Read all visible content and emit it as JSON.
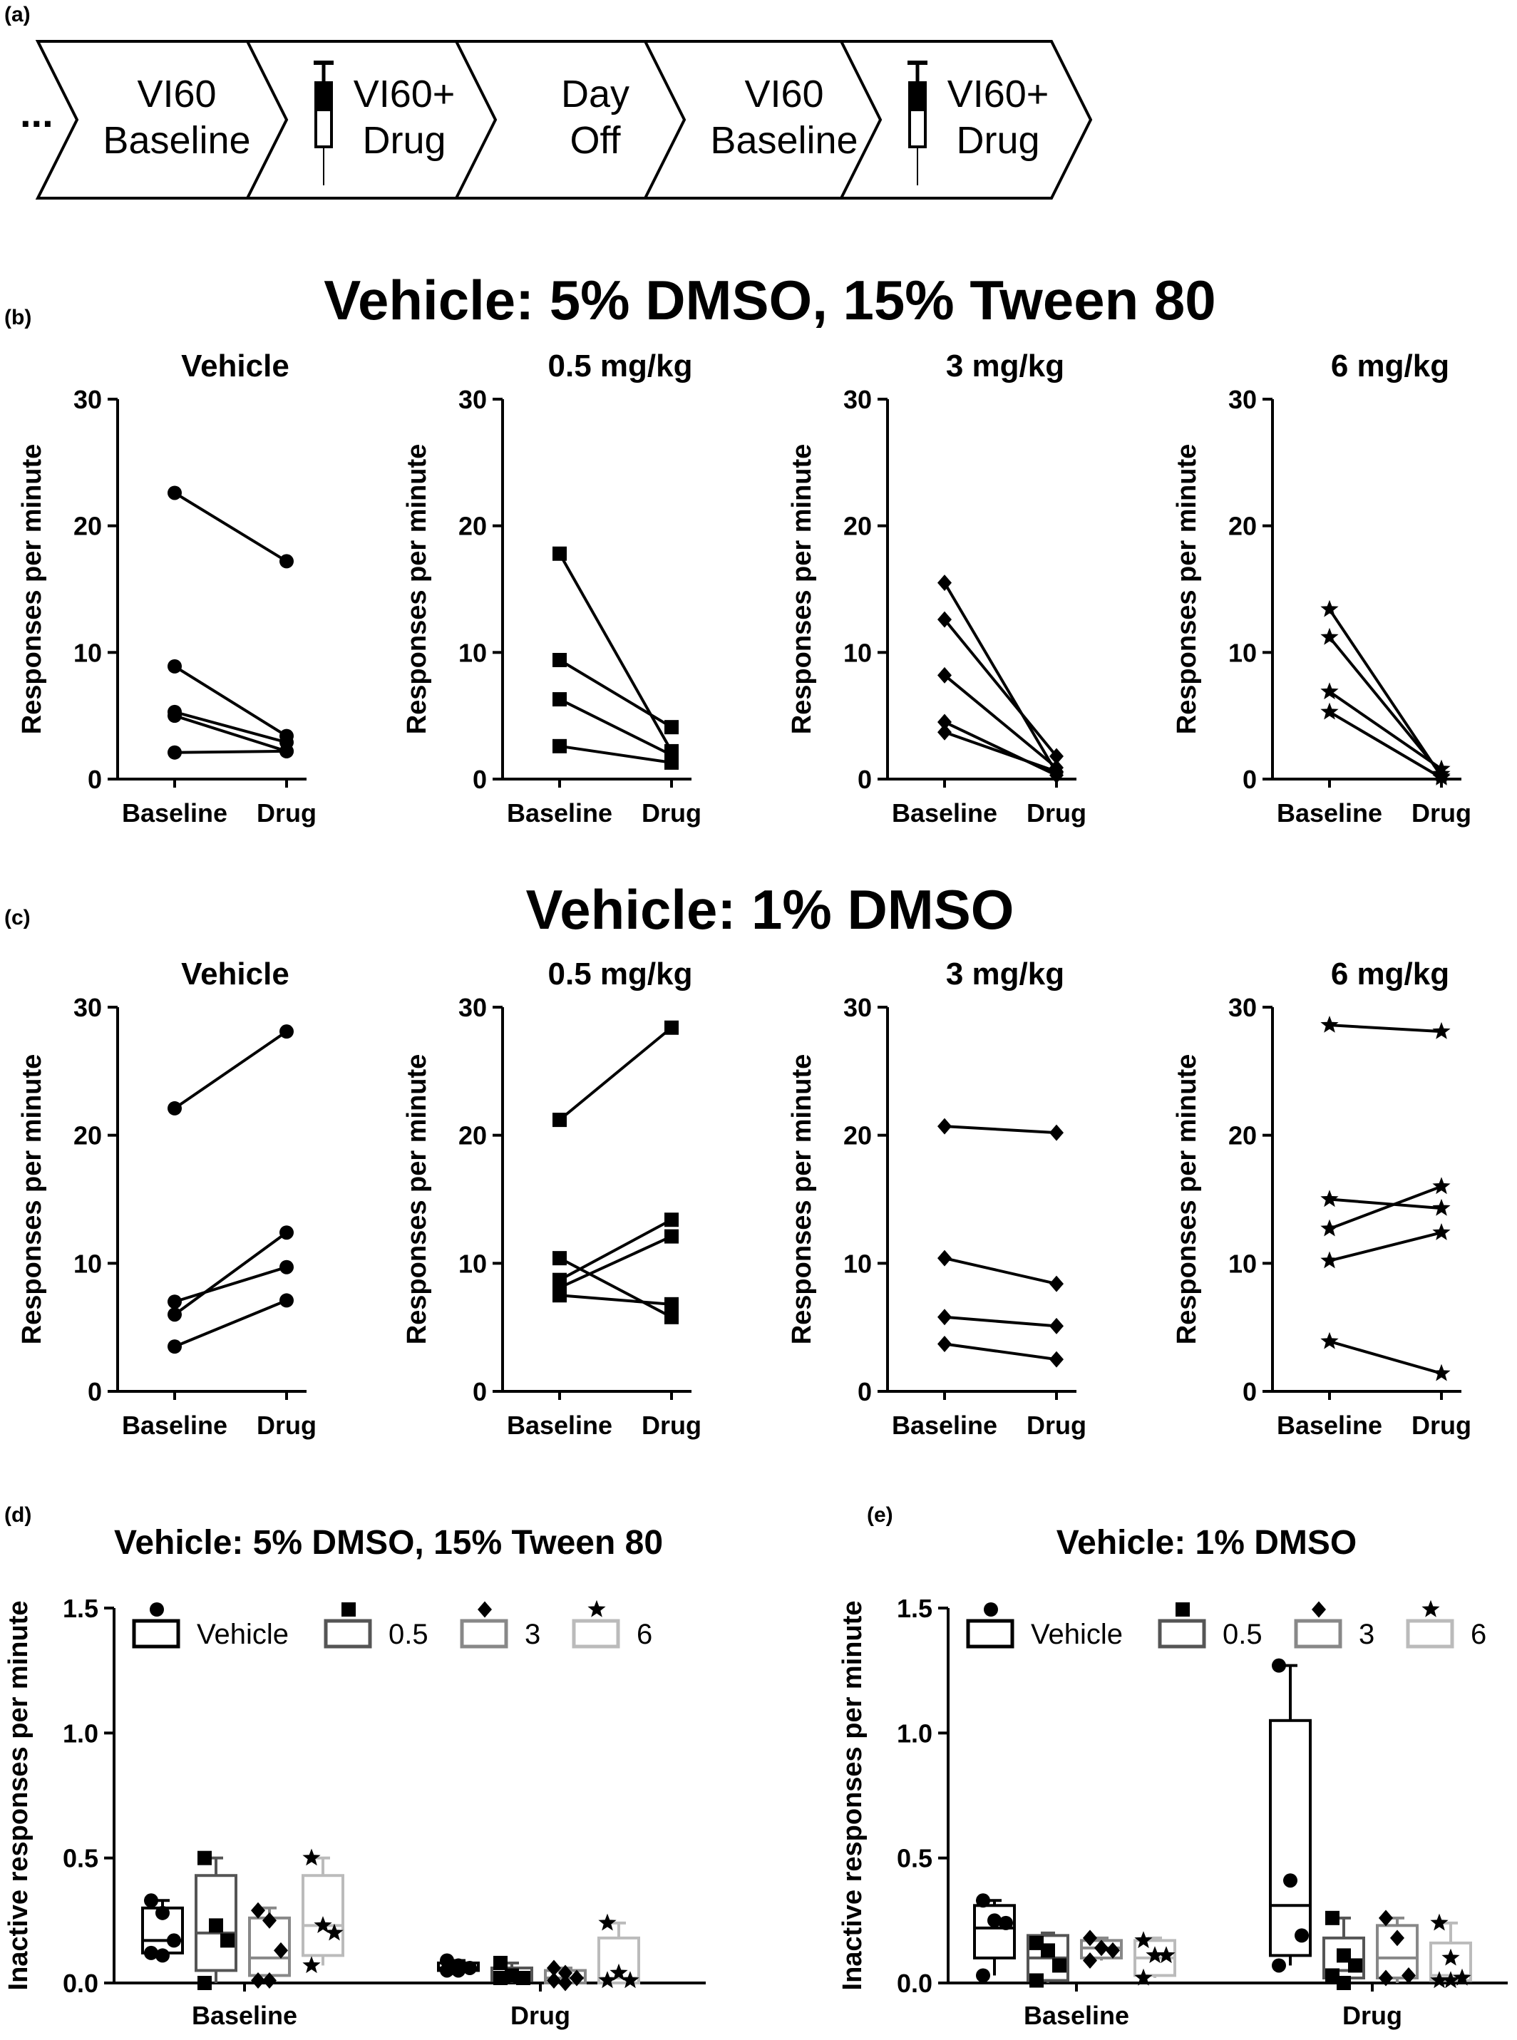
{
  "labels": {
    "a": "(a)",
    "b": "(b)",
    "c": "(c)",
    "d": "(d)",
    "e": "(e)"
  },
  "schedule": {
    "ellipsis": "...",
    "steps": [
      {
        "line1": "VI60",
        "line2": "Baseline",
        "syringe": false
      },
      {
        "line1": "VI60+",
        "line2": "Drug",
        "syringe": true
      },
      {
        "line1": "Day",
        "line2": "Off",
        "syringe": false
      },
      {
        "line1": "VI60",
        "line2": "Baseline",
        "syringe": false
      },
      {
        "line1": "VI60+",
        "line2": "Drug",
        "syringe": true
      }
    ]
  },
  "section_b_title": "Vehicle: 5% DMSO, 15% Tween 80",
  "section_c_title": "Vehicle: 1% DMSO",
  "chart_data": [
    {
      "id": "b1",
      "type": "line",
      "marker": "circle",
      "title": "Vehicle",
      "ylabel": "Responses per minute",
      "ylim": [
        0,
        30
      ],
      "yticks": [
        0,
        10,
        20,
        30
      ],
      "categories": [
        "Baseline",
        "Drug"
      ],
      "series": [
        {
          "values": [
            22.6,
            17.2
          ]
        },
        {
          "values": [
            8.9,
            3.4
          ]
        },
        {
          "values": [
            5.3,
            2.9
          ]
        },
        {
          "values": [
            5.0,
            2.2
          ]
        },
        {
          "values": [
            2.1,
            2.2
          ]
        }
      ]
    },
    {
      "id": "b2",
      "type": "line",
      "marker": "square",
      "title": "0.5 mg/kg",
      "ylabel": "Responses per minute",
      "ylim": [
        0,
        30
      ],
      "yticks": [
        0,
        10,
        20,
        30
      ],
      "categories": [
        "Baseline",
        "Drug"
      ],
      "series": [
        {
          "values": [
            17.8,
            2.2
          ]
        },
        {
          "values": [
            9.4,
            4.1
          ]
        },
        {
          "values": [
            6.3,
            1.9
          ]
        },
        {
          "values": [
            2.6,
            1.3
          ]
        }
      ]
    },
    {
      "id": "b3",
      "type": "line",
      "marker": "diamond",
      "title": "3 mg/kg",
      "ylabel": "Responses per minute",
      "ylim": [
        0,
        30
      ],
      "yticks": [
        0,
        10,
        20,
        30
      ],
      "categories": [
        "Baseline",
        "Drug"
      ],
      "series": [
        {
          "values": [
            15.5,
            0.5
          ]
        },
        {
          "values": [
            12.6,
            1.8
          ]
        },
        {
          "values": [
            8.2,
            0.9
          ]
        },
        {
          "values": [
            4.5,
            0.3
          ]
        },
        {
          "values": [
            3.7,
            0.6
          ]
        }
      ]
    },
    {
      "id": "b4",
      "type": "line",
      "marker": "star",
      "title": "6 mg/kg",
      "ylabel": "Responses per minute",
      "ylim": [
        0,
        30
      ],
      "yticks": [
        0,
        10,
        20,
        30
      ],
      "categories": [
        "Baseline",
        "Drug"
      ],
      "series": [
        {
          "values": [
            13.4,
            0.2
          ]
        },
        {
          "values": [
            11.2,
            0.4
          ]
        },
        {
          "values": [
            6.9,
            0.8
          ]
        },
        {
          "values": [
            5.3,
            0.1
          ]
        }
      ]
    },
    {
      "id": "c1",
      "type": "line",
      "marker": "circle",
      "title": "Vehicle",
      "ylabel": "Responses per minute",
      "ylim": [
        0,
        30
      ],
      "yticks": [
        0,
        10,
        20,
        30
      ],
      "categories": [
        "Baseline",
        "Drug"
      ],
      "series": [
        {
          "values": [
            22.1,
            28.1
          ]
        },
        {
          "values": [
            7.0,
            9.7
          ]
        },
        {
          "values": [
            6.0,
            12.4
          ]
        },
        {
          "values": [
            3.5,
            7.1
          ]
        }
      ]
    },
    {
      "id": "c2",
      "type": "line",
      "marker": "square",
      "title": "0.5 mg/kg",
      "ylabel": "Responses per minute",
      "ylim": [
        0,
        30
      ],
      "yticks": [
        0,
        10,
        20,
        30
      ],
      "categories": [
        "Baseline",
        "Drug"
      ],
      "series": [
        {
          "values": [
            21.2,
            28.4
          ]
        },
        {
          "values": [
            10.4,
            5.8
          ]
        },
        {
          "values": [
            8.7,
            13.4
          ]
        },
        {
          "values": [
            8.1,
            12.1
          ]
        },
        {
          "values": [
            7.5,
            6.8
          ]
        }
      ]
    },
    {
      "id": "c3",
      "type": "line",
      "marker": "diamond",
      "title": "3 mg/kg",
      "ylabel": "Responses per minute",
      "ylim": [
        0,
        30
      ],
      "yticks": [
        0,
        10,
        20,
        30
      ],
      "categories": [
        "Baseline",
        "Drug"
      ],
      "series": [
        {
          "values": [
            20.7,
            20.2
          ]
        },
        {
          "values": [
            10.4,
            8.4
          ]
        },
        {
          "values": [
            5.8,
            5.1
          ]
        },
        {
          "values": [
            3.7,
            2.5
          ]
        }
      ]
    },
    {
      "id": "c4",
      "type": "line",
      "marker": "star",
      "title": "6 mg/kg",
      "ylabel": "Responses per minute",
      "ylim": [
        0,
        30
      ],
      "yticks": [
        0,
        10,
        20,
        30
      ],
      "categories": [
        "Baseline",
        "Drug"
      ],
      "series": [
        {
          "values": [
            28.6,
            28.1
          ]
        },
        {
          "values": [
            15.0,
            14.3
          ]
        },
        {
          "values": [
            12.7,
            16.0
          ]
        },
        {
          "values": [
            10.2,
            12.4
          ]
        },
        {
          "values": [
            3.9,
            1.4
          ]
        }
      ]
    },
    {
      "id": "d",
      "type": "box",
      "title": "Vehicle: 5% DMSO, 15% Tween 80",
      "ylabel": "Inactive responses per minute",
      "ylim": [
        0,
        1.5
      ],
      "yticks": [
        "0.0",
        "0.5",
        "1.0",
        "1.5"
      ],
      "categories": [
        "Baseline",
        "Drug"
      ],
      "legend": [
        {
          "name": "Vehicle",
          "marker": "circle",
          "color": "#000000"
        },
        {
          "name": "0.5",
          "marker": "square",
          "color": "#555555"
        },
        {
          "name": "3",
          "marker": "diamond",
          "color": "#888888"
        },
        {
          "name": "6",
          "marker": "star",
          "color": "#bbbbbb"
        }
      ],
      "groups": [
        {
          "category": "Baseline",
          "boxes": [
            {
              "series": "Vehicle",
              "q1": 0.12,
              "median": 0.17,
              "q3": 0.3,
              "min": 0.1,
              "max": 0.33,
              "points": [
                0.33,
                0.28,
                0.17,
                0.12,
                0.11
              ]
            },
            {
              "series": "0.5",
              "q1": 0.05,
              "median": 0.2,
              "q3": 0.43,
              "min": 0.0,
              "max": 0.5,
              "points": [
                0.5,
                0.23,
                0.17,
                0.0
              ]
            },
            {
              "series": "3",
              "q1": 0.03,
              "median": 0.1,
              "q3": 0.26,
              "min": 0.0,
              "max": 0.3,
              "points": [
                0.29,
                0.25,
                0.13,
                0.01,
                0.01
              ]
            },
            {
              "series": "6",
              "q1": 0.11,
              "median": 0.23,
              "q3": 0.43,
              "min": 0.07,
              "max": 0.5,
              "points": [
                0.5,
                0.23,
                0.2,
                0.07
              ]
            }
          ]
        },
        {
          "category": "Drug",
          "boxes": [
            {
              "series": "Vehicle",
              "q1": 0.05,
              "median": 0.06,
              "q3": 0.08,
              "min": 0.04,
              "max": 0.09,
              "points": [
                0.09,
                0.07,
                0.06,
                0.05,
                0.05
              ]
            },
            {
              "series": "0.5",
              "q1": 0.01,
              "median": 0.02,
              "q3": 0.06,
              "min": 0.0,
              "max": 0.08,
              "points": [
                0.08,
                0.03,
                0.02,
                0.02
              ]
            },
            {
              "series": "3",
              "q1": 0.0,
              "median": 0.02,
              "q3": 0.05,
              "min": 0.0,
              "max": 0.06,
              "points": [
                0.06,
                0.04,
                0.02,
                0.01,
                0.0
              ]
            },
            {
              "series": "6",
              "q1": 0.0,
              "median": 0.02,
              "q3": 0.18,
              "min": 0.0,
              "max": 0.24,
              "points": [
                0.24,
                0.04,
                0.01,
                0.01
              ]
            }
          ]
        }
      ]
    },
    {
      "id": "e",
      "type": "box",
      "title": "Vehicle: 1%  DMSO",
      "ylabel": "Inactive responses per minute",
      "ylim": [
        0,
        1.5
      ],
      "yticks": [
        "0.0",
        "0.5",
        "1.0",
        "1.5"
      ],
      "categories": [
        "Baseline",
        "Drug"
      ],
      "legend": [
        {
          "name": "Vehicle",
          "marker": "circle",
          "color": "#000000"
        },
        {
          "name": "0.5",
          "marker": "square",
          "color": "#555555"
        },
        {
          "name": "3",
          "marker": "diamond",
          "color": "#888888"
        },
        {
          "name": "6",
          "marker": "star",
          "color": "#bbbbbb"
        }
      ],
      "groups": [
        {
          "category": "Baseline",
          "boxes": [
            {
              "series": "Vehicle",
              "q1": 0.1,
              "median": 0.22,
              "q3": 0.31,
              "min": 0.03,
              "max": 0.33,
              "points": [
                0.33,
                0.25,
                0.24,
                0.03
              ]
            },
            {
              "series": "0.5",
              "q1": 0.01,
              "median": 0.1,
              "q3": 0.19,
              "min": 0.0,
              "max": 0.2,
              "points": [
                0.16,
                0.13,
                0.07,
                0.01
              ]
            },
            {
              "series": "3",
              "q1": 0.1,
              "median": 0.14,
              "q3": 0.17,
              "min": 0.09,
              "max": 0.18,
              "points": [
                0.18,
                0.14,
                0.13,
                0.09
              ]
            },
            {
              "series": "6",
              "q1": 0.03,
              "median": 0.1,
              "q3": 0.17,
              "min": 0.02,
              "max": 0.18,
              "points": [
                0.17,
                0.11,
                0.11,
                0.02
              ]
            }
          ]
        },
        {
          "category": "Drug",
          "boxes": [
            {
              "series": "Vehicle",
              "q1": 0.11,
              "median": 0.31,
              "q3": 1.05,
              "min": 0.07,
              "max": 1.27,
              "points": [
                1.27,
                0.41,
                0.19,
                0.07
              ]
            },
            {
              "series": "0.5",
              "q1": 0.02,
              "median": 0.05,
              "q3": 0.18,
              "min": 0.0,
              "max": 0.26,
              "points": [
                0.26,
                0.11,
                0.07,
                0.03,
                0.0
              ]
            },
            {
              "series": "3",
              "q1": 0.02,
              "median": 0.1,
              "q3": 0.23,
              "min": 0.0,
              "max": 0.26,
              "points": [
                0.26,
                0.18,
                0.03,
                0.02
              ]
            },
            {
              "series": "6",
              "q1": 0.01,
              "median": 0.03,
              "q3": 0.16,
              "min": 0.0,
              "max": 0.24,
              "points": [
                0.24,
                0.1,
                0.02,
                0.01,
                0.01
              ]
            }
          ]
        }
      ]
    }
  ]
}
